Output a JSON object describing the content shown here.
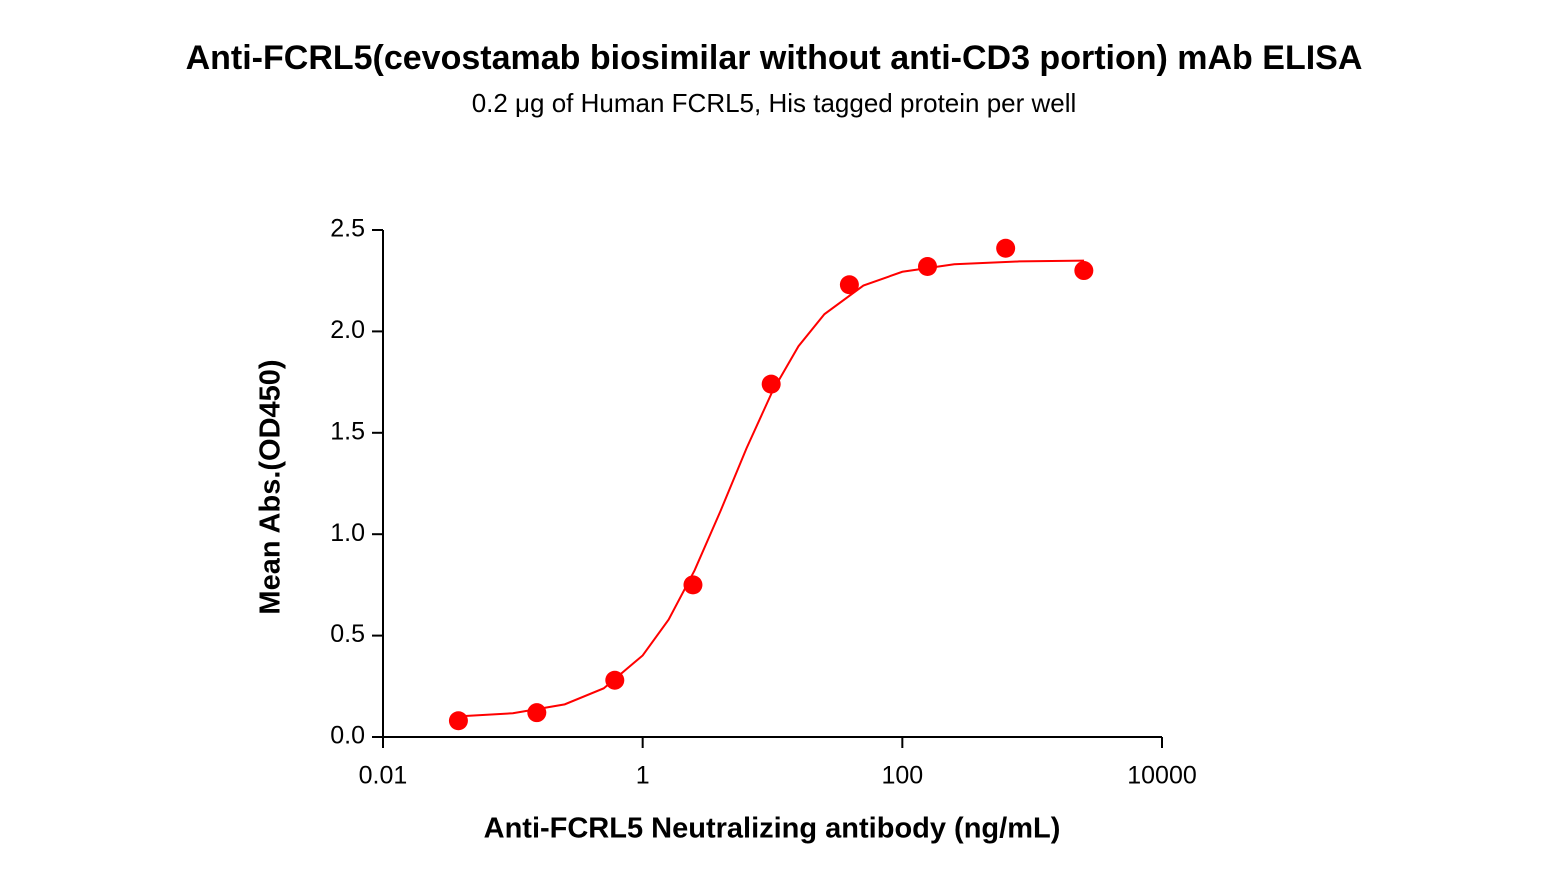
{
  "chart_data": {
    "type": "scatter",
    "title": "Anti-FCRL5(cevostamab biosimilar without anti-CD3 portion) mAb ELISA",
    "subtitle": "0.2 μg of Human FCRL5, His tagged protein per well",
    "x_label": "Anti-FCRL5 Neutralizing antibody (ng/mL)",
    "y_label": "Mean Abs.(OD450)",
    "x_scale": "log",
    "xlim": [
      0.01,
      10000
    ],
    "xticks": [
      0.01,
      1,
      100,
      10000
    ],
    "ylim": [
      0,
      2.5
    ],
    "yticks": [
      {
        "value": 0,
        "label": "0.0"
      },
      0.5,
      {
        "value": 1,
        "label": "1.0"
      },
      1.5,
      {
        "value": 2,
        "label": "2.0"
      },
      2.5
    ],
    "grid": false,
    "series": [
      {
        "color": "#ff0000",
        "x": [
          0.0381,
          0.153,
          0.61,
          2.44,
          9.77,
          39.1,
          156.25,
          625,
          2500
        ],
        "values": [
          0.08,
          0.12,
          0.28,
          0.75,
          1.74,
          2.23,
          2.32,
          2.41,
          2.3
        ]
      }
    ],
    "fit_curve": {
      "color": "#ff0000",
      "x": [
        0.0381,
        0.1,
        0.251,
        0.501,
        1,
        1.585,
        2.512,
        3.981,
        6.31,
        10,
        15.85,
        25.12,
        50.12,
        100,
        251.2,
        794.3,
        2512
      ],
      "values": [
        0.102,
        0.117,
        0.161,
        0.24,
        0.402,
        0.579,
        0.822,
        1.115,
        1.424,
        1.705,
        1.927,
        2.085,
        2.226,
        2.294,
        2.331,
        2.345,
        2.349
      ]
    }
  }
}
